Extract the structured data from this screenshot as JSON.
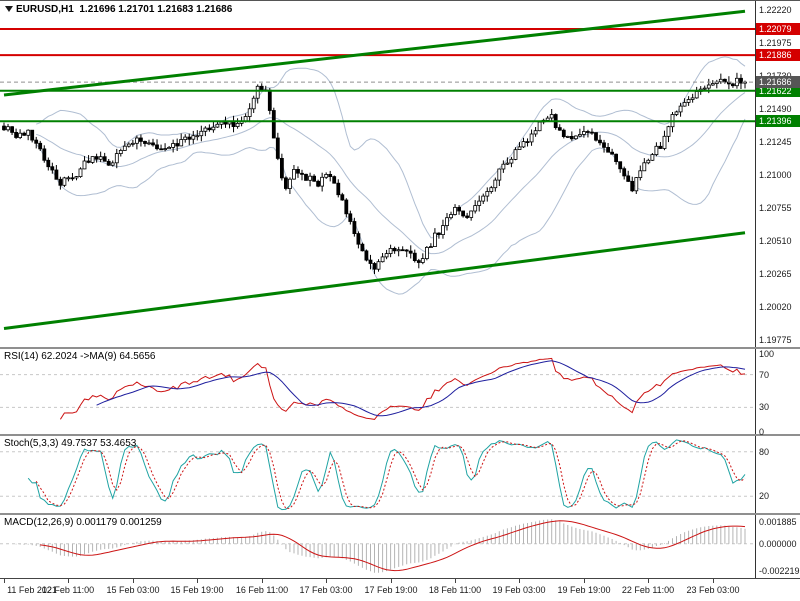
{
  "window": {
    "symbol": "EURUSD,H1",
    "ohlc": "1.21696 1.21701 1.21683 1.21686"
  },
  "chart_data": {
    "type": "candlestick",
    "instrument": "EURUSD",
    "timeframe": "H1",
    "last_bar": {
      "open": "1.21696",
      "high": "1.21701",
      "low": "1.21683",
      "close": "1.21686"
    },
    "main": {
      "bars": 185,
      "scale": {
        "top_price": 1.2222,
        "bottom_price": 1.19775
      },
      "price_axis_labels": [
        "1.22220",
        "1.21975",
        "1.21730",
        "1.21490",
        "1.21245",
        "1.21000",
        "1.20755",
        "1.20510",
        "1.20265",
        "1.20020",
        "1.19775"
      ],
      "price_path": [
        [
          0,
          1.2136
        ],
        [
          3,
          1.2127
        ],
        [
          6,
          1.2131
        ],
        [
          10,
          1.2112
        ],
        [
          14,
          1.2093
        ],
        [
          18,
          1.2101
        ],
        [
          22,
          1.2114
        ],
        [
          26,
          1.2108
        ],
        [
          30,
          1.2121
        ],
        [
          34,
          1.2126
        ],
        [
          38,
          1.2118
        ],
        [
          42,
          1.2121
        ],
        [
          46,
          1.2127
        ],
        [
          50,
          1.2134
        ],
        [
          54,
          1.2139
        ],
        [
          58,
          1.2137
        ],
        [
          61,
          1.2147
        ],
        [
          63,
          1.2164
        ],
        [
          65,
          1.2163
        ],
        [
          67,
          1.2128
        ],
        [
          69,
          1.2096
        ],
        [
          70,
          1.2087
        ],
        [
          72,
          1.2104
        ],
        [
          75,
          1.2098
        ],
        [
          78,
          1.2093
        ],
        [
          80,
          1.2101
        ],
        [
          83,
          1.2087
        ],
        [
          86,
          1.2067
        ],
        [
          88,
          1.2049
        ],
        [
          90,
          1.2036
        ],
        [
          92,
          1.2028
        ],
        [
          94,
          1.2041
        ],
        [
          97,
          1.2046
        ],
        [
          100,
          1.2043
        ],
        [
          103,
          1.2037
        ],
        [
          105,
          1.2044
        ],
        [
          107,
          1.2054
        ],
        [
          109,
          1.2062
        ],
        [
          112,
          1.2074
        ],
        [
          115,
          1.207
        ],
        [
          118,
          1.2081
        ],
        [
          121,
          1.2091
        ],
        [
          124,
          1.2107
        ],
        [
          127,
          1.2117
        ],
        [
          130,
          1.2127
        ],
        [
          133,
          1.2137
        ],
        [
          136,
          1.2142
        ],
        [
          139,
          1.2126
        ],
        [
          142,
          1.2131
        ],
        [
          145,
          1.2133
        ],
        [
          147,
          1.2127
        ],
        [
          150,
          1.2119
        ],
        [
          153,
          1.2106
        ],
        [
          156,
          1.209
        ],
        [
          158,
          1.2104
        ],
        [
          161,
          1.2117
        ],
        [
          163,
          1.2122
        ],
        [
          166,
          1.2143
        ],
        [
          169,
          1.2151
        ],
        [
          172,
          1.2161
        ],
        [
          175,
          1.2167
        ],
        [
          177,
          1.217
        ],
        [
          180,
          1.2165
        ],
        [
          182,
          1.2169
        ],
        [
          184,
          1.21686
        ]
      ],
      "bollinger": {
        "period": 20,
        "deviation": 2,
        "color": "#b0bed2"
      },
      "levels": [
        {
          "price": 1.22079,
          "label": "1.22079",
          "color": "#d40000",
          "kind": "resistance"
        },
        {
          "price": 1.21886,
          "label": "1.21886",
          "color": "#d40000",
          "kind": "resistance"
        },
        {
          "price": 1.21622,
          "label": "1.21622",
          "color": "#008000",
          "kind": "support"
        },
        {
          "price": 1.21396,
          "label": "1.21396",
          "color": "#008000",
          "kind": "support"
        }
      ],
      "current_price": {
        "price": 1.21686,
        "label": "1.21686",
        "badge_color": "#565656"
      },
      "trendlines": [
        {
          "from_bar": 0,
          "from_price": 1.2159,
          "to_bar": 184,
          "to_price": 1.2221,
          "color": "#008000",
          "width": 3
        },
        {
          "from_bar": 0,
          "from_price": 1.1986,
          "to_bar": 184,
          "to_price": 1.2057,
          "color": "#008000",
          "width": 3
        }
      ],
      "candle_up_fill": "#ffffff",
      "candle_down_fill": "#000000",
      "candle_outline": "#000000"
    },
    "indicators": {
      "rsi": {
        "label": "RSI(14) 62.2024 ->MA(9) 64.5656",
        "period": 14,
        "ma_period": 9,
        "range": [
          0,
          100
        ],
        "levels": [
          70,
          30
        ],
        "axis_labels": [
          [
            "100",
            100
          ],
          [
            "70",
            70
          ],
          [
            "30",
            30
          ],
          [
            "0",
            0
          ]
        ],
        "line_color": "#cc1414",
        "ma_color": "#1f1f9e"
      },
      "stoch": {
        "label": "Stoch(5,3,3) 49.7537 53.4653",
        "k_period": 5,
        "slowing": 3,
        "d_period": 3,
        "range": [
          0,
          100
        ],
        "levels": [
          80,
          20
        ],
        "axis_labels": [
          [
            "80",
            80
          ],
          [
            "20",
            20
          ]
        ],
        "k_color": "#1fa3a3",
        "d_color": "#cc1414"
      },
      "macd": {
        "label": "MACD(12,26,9) 0.001179 0.001259",
        "fast": 12,
        "slow": 26,
        "signal": 9,
        "axis_top_label": "0.001885",
        "axis_zero_label": "0.000000",
        "axis_bottom_label": "-0.002219",
        "hist_color": "#b4b4b4",
        "signal_color": "#cc1414"
      }
    },
    "time_axis_labels": [
      "11 Feb 2021",
      "12 Feb 11:00",
      "15 Feb 03:00",
      "15 Feb 19:00",
      "16 Feb 11:00",
      "17 Feb 03:00",
      "17 Feb 19:00",
      "18 Feb 11:00",
      "19 Feb 03:00",
      "19 Feb 19:00",
      "22 Feb 11:00",
      "23 Feb 03:00"
    ],
    "label_every_bars": 16
  },
  "colors": {
    "background": "#ffffff",
    "axis_text": "#1a1a1a",
    "separator": "#8f8f8f",
    "level_dashed": "#c8c8c8",
    "current_price_line": "#909090"
  }
}
